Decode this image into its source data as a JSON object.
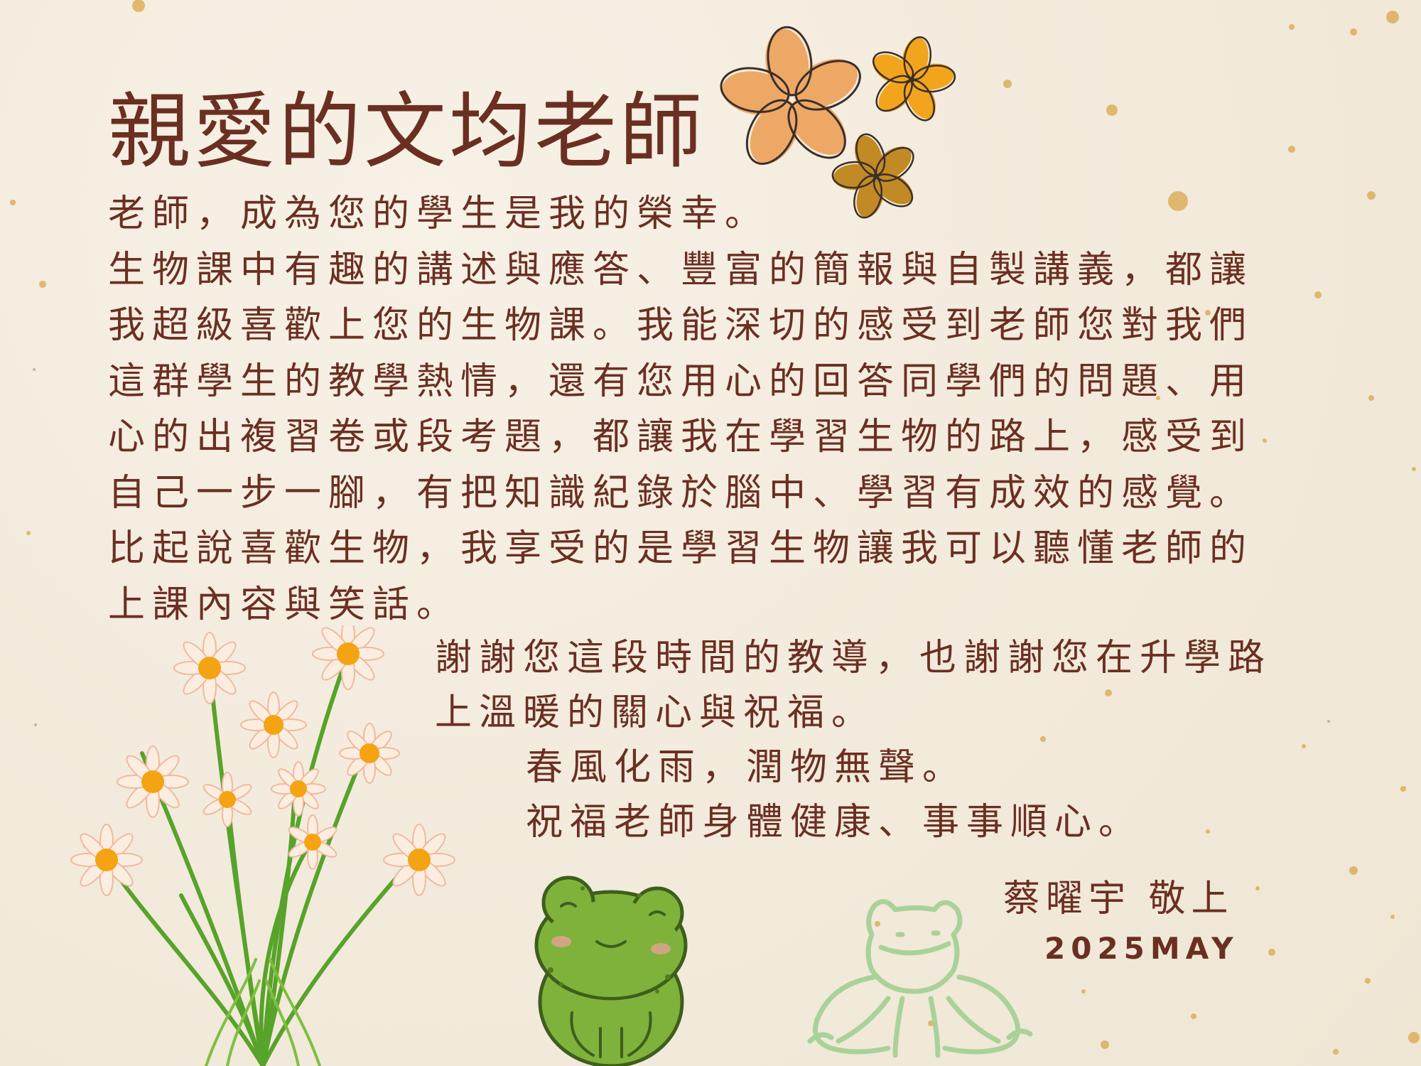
{
  "letter": {
    "title": "親愛的文均老師",
    "paragraphs": [
      "老師，成為您的學生是我的榮幸。",
      "生物課中有趣的講述與應答、豐富的簡報與自製講義，都讓我超級喜歡上您的生物課。我能深切的感受到老師您對我們這群學生的教學熱情，還有您用心的回答同學們的問題、用心的出複習卷或段考題，都讓我在學習生物的路上，感受到自己一步一腳，有把知識紀錄於腦中、學習有成效的感覺。",
      "比起說喜歡生物，我享受的是學習生物讓我可以聽懂老師的上課內容與笑話。"
    ],
    "closing": "謝謝您這段時間的教導，也謝謝您在升學路上溫暖的關心與祝福。",
    "wishes": [
      "春風化雨，潤物無聲。",
      "祝福老師身體健康、事事順心。"
    ],
    "signature": "蔡曜宇 敬上",
    "date": "2025MAY"
  },
  "decorations": {
    "flowers_top_right": "plumeria-flowers-illustration",
    "daisies_bottom_left": "daisy-bouquet-illustration",
    "frog_green": "green-frog-illustration",
    "frog_outline": "outline-frog-illustration"
  },
  "colors": {
    "text": "#6b2f22",
    "paper": "#f4ede0",
    "speckle": "#d8a64a",
    "frog": "#7fb23a",
    "petal_peach": "#eea866",
    "petal_orange": "#f2a51c",
    "petal_brown": "#c18a24"
  }
}
